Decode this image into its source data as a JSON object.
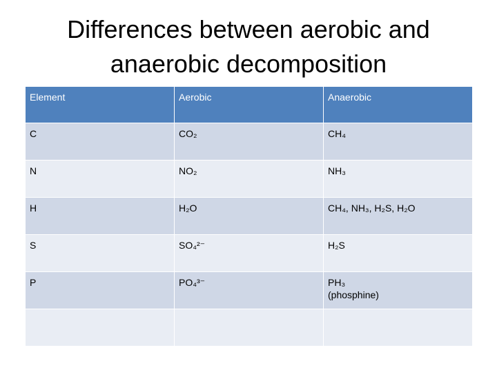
{
  "slide": {
    "title_line1": "Differences between aerobic and",
    "title_line2": "anaerobic decomposition"
  },
  "table": {
    "headers": [
      "Element",
      "Aerobic",
      "Anaerobic"
    ],
    "rows": [
      [
        "C",
        "CO₂",
        "CH₄"
      ],
      [
        "N",
        "NO₂",
        "NH₃"
      ],
      [
        "H",
        "H₂O",
        "CH₄, NH₃, H₂S, H₂O"
      ],
      [
        "S",
        "SO₄²⁻",
        "H₂S"
      ],
      [
        "P",
        "PO₄³⁻",
        "PH₃\n(phosphine)"
      ],
      [
        "",
        "",
        ""
      ]
    ]
  },
  "colors": {
    "header_bg": "#4f81bd",
    "row_dark": "#cfd7e6",
    "row_light": "#e9edf4"
  }
}
